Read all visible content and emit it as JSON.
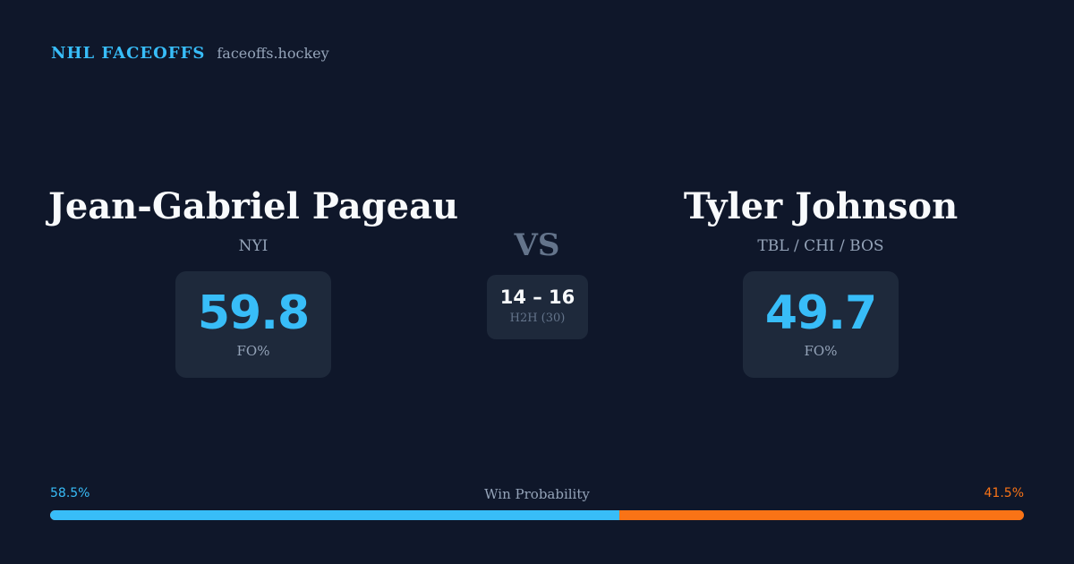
{
  "brand": {
    "name": "NHL FACEOFFS",
    "url": "faceoffs.hockey"
  },
  "players": {
    "left": {
      "name": "Jean-Gabriel Pageau",
      "team": "NYI",
      "fo_value": "59.8",
      "fo_label": "FO%"
    },
    "right": {
      "name": "Tyler Johnson",
      "team": "TBL / CHI / BOS",
      "fo_value": "49.7",
      "fo_label": "FO%"
    }
  },
  "versus": {
    "label": "VS",
    "score": "14 – 16",
    "h2h_label": "H2H (30)"
  },
  "win_probability": {
    "title": "Win Probability",
    "left_label": "58.5%",
    "right_label": "41.5%",
    "left_fraction": 0.585,
    "right_fraction": 0.415
  },
  "colors": {
    "background": "#0f172a",
    "card": "#1e293b",
    "accent_blue": "#38bdf8",
    "accent_orange": "#f97316"
  }
}
